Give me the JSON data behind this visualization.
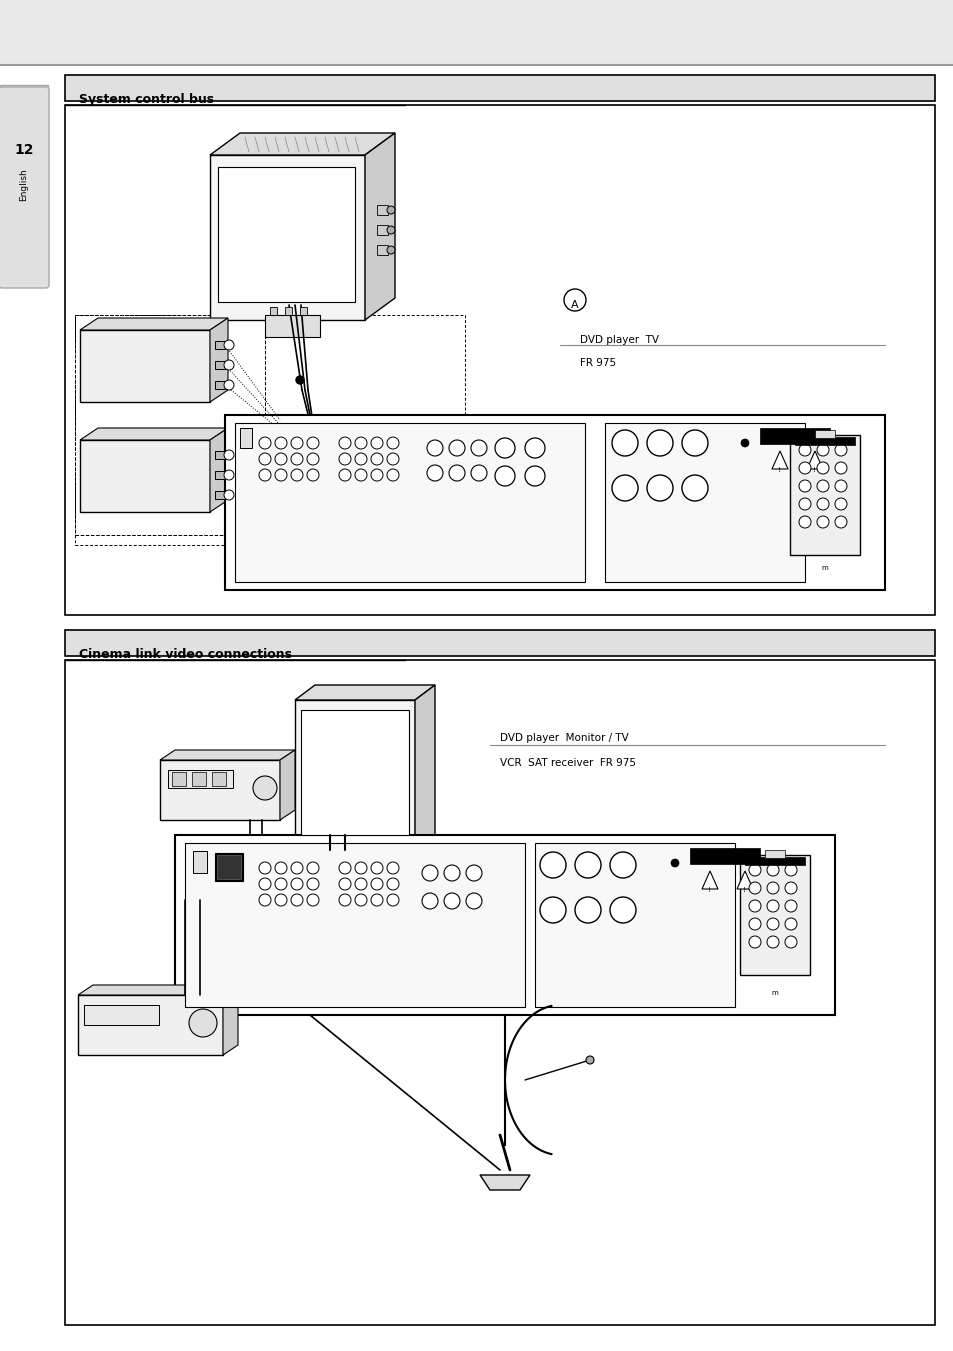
{
  "page_bg": "#e8e8e8",
  "white": "#ffffff",
  "black": "#000000",
  "light_gray": "#e0e0e0",
  "mid_gray": "#cccccc",
  "dark_gray": "#888888",
  "header1_text": "System control bus",
  "header2_text": "Cinema link video connections",
  "label_dvd_tv": "DVD player  TV",
  "label_fr975_1": "FR 975",
  "label_dvd_monitor": "DVD player  Monitor / TV",
  "label_vcr_sat": "VCR  SAT receiver  FR 975",
  "circled_A": "A",
  "tab_num": "12",
  "tab_lang": "English",
  "fig_width": 9.54,
  "fig_height": 13.51,
  "dpi": 100
}
